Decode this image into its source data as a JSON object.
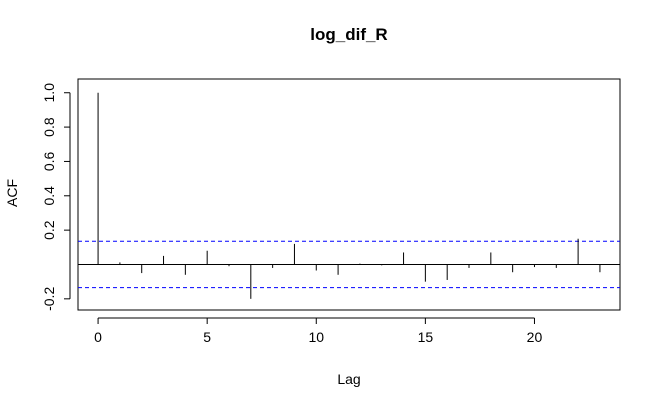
{
  "chart_data": {
    "type": "bar",
    "title": "log_dif_R",
    "xlabel": "Lag",
    "ylabel": "ACF",
    "xlim": [
      -0.92,
      23.92
    ],
    "ylim": [
      -0.265,
      1.08
    ],
    "xticks": [
      0,
      5,
      10,
      15,
      20
    ],
    "xtick_labels": [
      "0",
      "5",
      "10",
      "15",
      "20"
    ],
    "yticks": [
      -0.2,
      0.2,
      0.4,
      0.6,
      0.8,
      1.0
    ],
    "ytick_labels": [
      "-0.2",
      "0.2",
      "0.4",
      "0.6",
      "0.8",
      "1.0"
    ],
    "lags": [
      0,
      1,
      2,
      3,
      4,
      5,
      6,
      7,
      8,
      9,
      10,
      11,
      12,
      13,
      14,
      15,
      16,
      17,
      18,
      19,
      20,
      21,
      22,
      23
    ],
    "values": [
      1.0,
      0.012,
      -0.05,
      0.05,
      -0.06,
      0.08,
      -0.01,
      -0.2,
      -0.02,
      0.12,
      -0.035,
      -0.06,
      0.005,
      -0.005,
      0.07,
      -0.1,
      -0.09,
      -0.02,
      0.07,
      -0.045,
      -0.015,
      -0.02,
      0.15,
      -0.045
    ],
    "confidence_band": [
      0.135,
      -0.135
    ],
    "grid": false,
    "colors": {
      "lines": "#000000",
      "confidence": "#0000ff",
      "background": "#ffffff"
    }
  }
}
